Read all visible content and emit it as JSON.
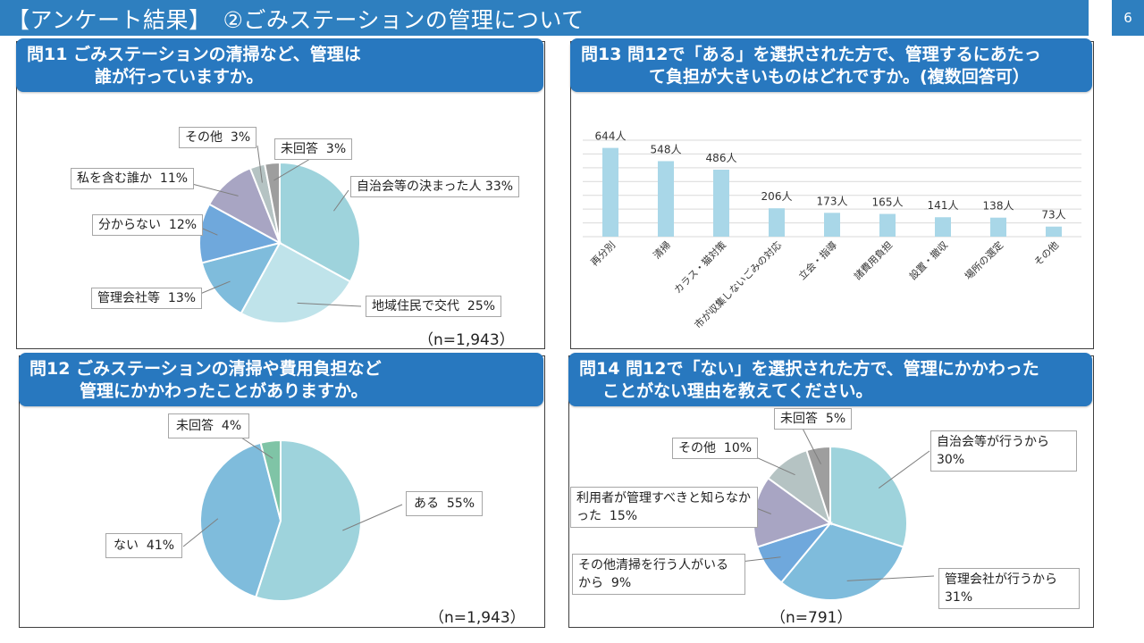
{
  "header": {
    "title": "【アンケート結果】　②ごみステーションの管理について",
    "page_number": "6"
  },
  "chart_data": [
    {
      "id": "q11",
      "type": "pie",
      "title_line1": "問11  ごみステーションの清掃など、管理は",
      "title_line2": "誰が行っていますか。",
      "sample_size": "（n=1,943）",
      "slices": [
        {
          "label": "自治会等の決まった人",
          "pct_text": "33%",
          "value": 33,
          "color": "#9ed3dc"
        },
        {
          "label": "地域住民で交代",
          "pct_text": "25%",
          "value": 25,
          "color": "#bfe3ea"
        },
        {
          "label": "管理会社等",
          "pct_text": "13%",
          "value": 13,
          "color": "#7fbcdc"
        },
        {
          "label": "分からない",
          "pct_text": "12%",
          "value": 12,
          "color": "#6fa8dc"
        },
        {
          "label": "私を含む誰か",
          "pct_text": "11%",
          "value": 11,
          "color": "#a8a5c3"
        },
        {
          "label": "その他",
          "pct_text": "3%",
          "value": 3,
          "color": "#b5c3c3"
        },
        {
          "label": "未回答",
          "pct_text": "3%",
          "value": 3,
          "color": "#9e9e9e"
        }
      ]
    },
    {
      "id": "q13",
      "type": "bar",
      "title_line1": "問13  問12で「ある」を選択された方で、管理するにあたっ",
      "title_line2": "て負担が大きいものはどれですか。(複数回答可）",
      "categories": [
        "再分別",
        "清掃",
        "カラス・猫対策",
        "市が収集しないごみの対応",
        "立会・指導",
        "諸費用負担",
        "設置・撤収",
        "場所の選定",
        "その他"
      ],
      "values": [
        644,
        548,
        486,
        206,
        173,
        165,
        141,
        138,
        73
      ],
      "value_labels": [
        "644人",
        "548人",
        "486人",
        "206人",
        "173人",
        "165人",
        "141人",
        "138人",
        "73人"
      ],
      "ylim": [
        0,
        700
      ],
      "bar_color": "#a9d7e8",
      "grid": true
    },
    {
      "id": "q12",
      "type": "pie",
      "title_line1": "問12  ごみステーションの清掃や費用負担など",
      "title_line2": "管理にかかわったことがありますか。",
      "sample_size": "（n=1,943）",
      "slices": [
        {
          "label": "ある",
          "pct_text": "55%",
          "value": 55,
          "color": "#9ed3dc"
        },
        {
          "label": "ない",
          "pct_text": "41%",
          "value": 41,
          "color": "#7fbcdc"
        },
        {
          "label": "未回答",
          "pct_text": "4%",
          "value": 4,
          "color": "#7fc4a6"
        }
      ]
    },
    {
      "id": "q14",
      "type": "pie",
      "title_line1": "問14  問12で「ない」を選択された方で、管理にかかわった",
      "title_line2": "ことがない理由を教えてください。",
      "sample_size": "（n=791）",
      "slices": [
        {
          "label": "自治会等が行うから",
          "pct_text": "30%",
          "value": 30,
          "color": "#9ed3dc"
        },
        {
          "label": "管理会社が行うから",
          "pct_text": "31%",
          "value": 31,
          "color": "#7fbcdc"
        },
        {
          "label": "その他清掃を行う人がいるから",
          "pct_text": "9%",
          "value": 9,
          "color": "#6fa8dc"
        },
        {
          "label": "利用者が管理すべきと知らなかった",
          "pct_text": "15%",
          "value": 15,
          "color": "#a8a5c3"
        },
        {
          "label": "その他",
          "pct_text": "10%",
          "value": 10,
          "color": "#b5c3c3"
        },
        {
          "label": "未回答",
          "pct_text": "5%",
          "value": 5,
          "color": "#9e9e9e"
        }
      ]
    }
  ]
}
